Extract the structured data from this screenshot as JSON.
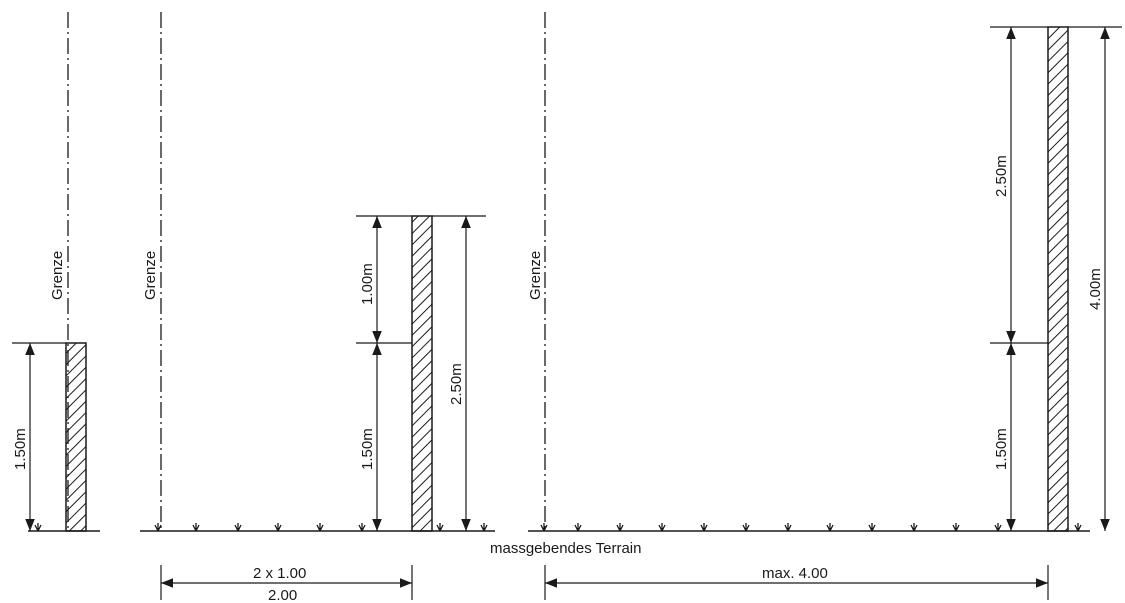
{
  "labels": {
    "grenze": "Grenze",
    "terrain": "massgebendes Terrain",
    "dim_1_50": "1.50m",
    "dim_1_00": "1.00m",
    "dim_2_50": "2.50m",
    "dim_4_00": "4.00m",
    "dim_2x100": "2 x 1.00",
    "dim_2_00": "2.00",
    "dim_max400": "max. 4.00"
  }
}
